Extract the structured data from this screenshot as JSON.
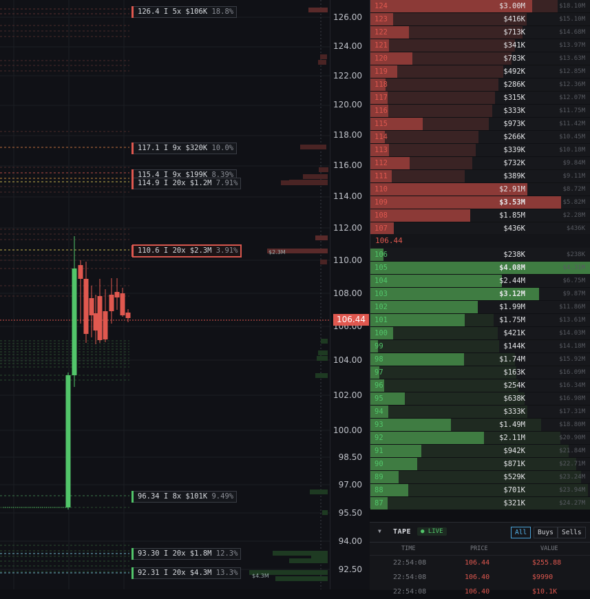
{
  "chart": {
    "y_ticks": [
      "126.00",
      "124.00",
      "122.00",
      "120.00",
      "118.00",
      "116.00",
      "114.00",
      "112.00",
      "110.00",
      "108.00",
      "106.00",
      "104.00",
      "102.00",
      "100.00",
      "98.50",
      "97.00",
      "95.50",
      "94.00",
      "92.50"
    ],
    "last_price": "106.44",
    "levels": [
      {
        "text": "126.4 I 5x $106K",
        "pct": "18.8%",
        "color": "#e0584f"
      },
      {
        "text": "117.1 I 9x $320K",
        "pct": "10.0%",
        "color": "#e0584f"
      },
      {
        "text": "115.4 I 9x $199K",
        "pct": "8.39%",
        "color": "#e0584f"
      },
      {
        "text": "114.9 I 20x $1.2M",
        "pct": "7.91%",
        "color": "#e0584f"
      },
      {
        "text": "110.6 I 20x $2.3M",
        "pct": "3.91%",
        "color": "#e0584f"
      },
      {
        "text": "96.34 I 8x $101K",
        "pct": "9.49%",
        "color": "#52c66a"
      },
      {
        "text": "93.30 I 20x $1.8M",
        "pct": "12.3%",
        "color": "#52c66a"
      },
      {
        "text": "92.31 I 20x $4.3M",
        "pct": "13.3%",
        "color": "#52c66a"
      }
    ],
    "vol_tags": [
      "$2.3M",
      "$4.3M"
    ]
  },
  "book": {
    "mid_price": "106.44",
    "asks": [
      {
        "price": "124",
        "size": "$3.00M",
        "cum": "$18.10M"
      },
      {
        "price": "123",
        "size": "$416K",
        "cum": "$15.10M"
      },
      {
        "price": "122",
        "size": "$713K",
        "cum": "$14.68M"
      },
      {
        "price": "121",
        "size": "$341K",
        "cum": "$13.97M"
      },
      {
        "price": "120",
        "size": "$783K",
        "cum": "$13.63M"
      },
      {
        "price": "119",
        "size": "$492K",
        "cum": "$12.85M"
      },
      {
        "price": "118",
        "size": "$286K",
        "cum": "$12.36M"
      },
      {
        "price": "117",
        "size": "$315K",
        "cum": "$12.07M"
      },
      {
        "price": "116",
        "size": "$333K",
        "cum": "$11.75M"
      },
      {
        "price": "115",
        "size": "$973K",
        "cum": "$11.42M"
      },
      {
        "price": "114",
        "size": "$266K",
        "cum": "$10.45M"
      },
      {
        "price": "113",
        "size": "$339K",
        "cum": "$10.18M"
      },
      {
        "price": "112",
        "size": "$732K",
        "cum": "$9.84M"
      },
      {
        "price": "111",
        "size": "$389K",
        "cum": "$9.11M"
      },
      {
        "price": "110",
        "size": "$2.91M",
        "cum": "$8.72M"
      },
      {
        "price": "109",
        "size": "$3.53M",
        "cum": "$5.82M"
      },
      {
        "price": "108",
        "size": "$1.85M",
        "cum": "$2.28M"
      },
      {
        "price": "107",
        "size": "$436K",
        "cum": "$436K"
      }
    ],
    "bids": [
      {
        "price": "106",
        "size": "$238K",
        "cum": "$238K"
      },
      {
        "price": "105",
        "size": "$4.08M",
        "cum": "$4.31M"
      },
      {
        "price": "104",
        "size": "$2.44M",
        "cum": "$6.75M"
      },
      {
        "price": "103",
        "size": "$3.12M",
        "cum": "$9.87M"
      },
      {
        "price": "102",
        "size": "$1.99M",
        "cum": "$11.86M"
      },
      {
        "price": "101",
        "size": "$1.75M",
        "cum": "$13.61M"
      },
      {
        "price": "100",
        "size": "$421K",
        "cum": "$14.03M"
      },
      {
        "price": "99",
        "size": "$144K",
        "cum": "$14.18M"
      },
      {
        "price": "98",
        "size": "$1.74M",
        "cum": "$15.92M"
      },
      {
        "price": "97",
        "size": "$163K",
        "cum": "$16.09M"
      },
      {
        "price": "96",
        "size": "$254K",
        "cum": "$16.34M"
      },
      {
        "price": "95",
        "size": "$638K",
        "cum": "$16.98M"
      },
      {
        "price": "94",
        "size": "$333K",
        "cum": "$17.31M"
      },
      {
        "price": "93",
        "size": "$1.49M",
        "cum": "$18.80M"
      },
      {
        "price": "92",
        "size": "$2.11M",
        "cum": "$20.90M"
      },
      {
        "price": "91",
        "size": "$942K",
        "cum": "$21.84M"
      },
      {
        "price": "90",
        "size": "$871K",
        "cum": "$22.71M"
      },
      {
        "price": "89",
        "size": "$529K",
        "cum": "$23.24M"
      },
      {
        "price": "88",
        "size": "$701K",
        "cum": "$23.94M"
      },
      {
        "price": "87",
        "size": "$321K",
        "cum": "$24.27M"
      }
    ]
  },
  "tape": {
    "title": "TAPE",
    "live_label": "● LIVE",
    "filters": [
      "All",
      "Buys",
      "Sells"
    ],
    "columns": [
      "TIME",
      "PRICE",
      "VALUE"
    ],
    "rows": [
      {
        "time": "22:54:08",
        "price": "106.44",
        "value": "$255.88"
      },
      {
        "time": "22:54:08",
        "price": "106.40",
        "value": "$9990"
      },
      {
        "time": "22:54:08",
        "price": "106.40",
        "value": "$10.1K"
      }
    ]
  },
  "colors": {
    "ask": "#e0584f",
    "bid": "#52c66a",
    "background": "#101116"
  }
}
